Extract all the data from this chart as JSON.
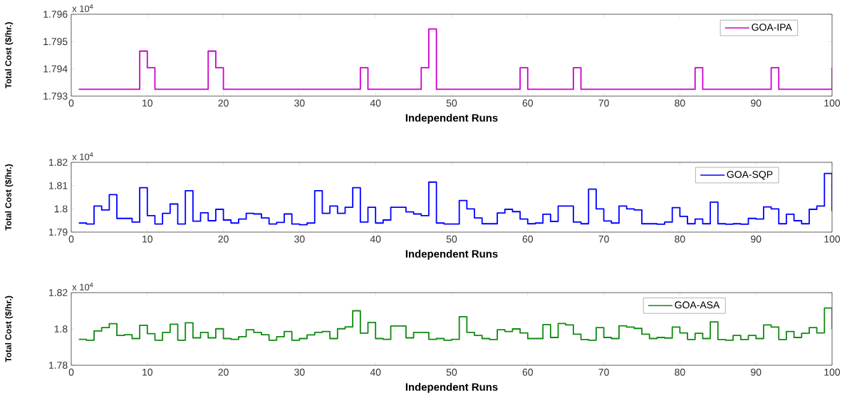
{
  "chart_data": [
    {
      "type": "step",
      "xlabel": "Independent Runs",
      "ylabel": "Total Cost ($/hr.)",
      "annotations": [
        "x 10$^{4}$"
      ],
      "legend": "top right",
      "xlim": [
        0,
        100
      ],
      "ylim": [
        1.793,
        1.796
      ],
      "xticks": [
        0,
        10,
        20,
        30,
        40,
        50,
        60,
        70,
        80,
        90,
        100
      ],
      "yticks": [
        1.793,
        1.794,
        1.795,
        1.796
      ],
      "x": [
        1,
        2,
        3,
        4,
        5,
        6,
        7,
        8,
        9,
        10,
        11,
        12,
        13,
        14,
        15,
        16,
        17,
        18,
        19,
        20,
        21,
        22,
        23,
        24,
        25,
        26,
        27,
        28,
        29,
        30,
        31,
        32,
        33,
        34,
        35,
        36,
        37,
        38,
        39,
        40,
        41,
        42,
        43,
        44,
        45,
        46,
        47,
        48,
        49,
        50,
        51,
        52,
        53,
        54,
        55,
        56,
        57,
        58,
        59,
        60,
        61,
        62,
        63,
        64,
        65,
        66,
        67,
        68,
        69,
        70,
        71,
        72,
        73,
        74,
        75,
        76,
        77,
        78,
        79,
        80,
        81,
        82,
        83,
        84,
        85,
        86,
        87,
        88,
        89,
        90,
        91,
        92,
        93,
        94,
        95,
        96,
        97,
        98,
        99,
        100
      ],
      "series": [
        {
          "name": "GOA-IPA",
          "color": "#cc00cc",
          "values": [
            1.79325,
            1.79325,
            1.79325,
            1.79325,
            1.79325,
            1.79325,
            1.79325,
            1.79325,
            1.79465,
            1.79404,
            1.79325,
            1.79325,
            1.79325,
            1.79325,
            1.79325,
            1.79325,
            1.79325,
            1.79465,
            1.79404,
            1.79325,
            1.79325,
            1.79325,
            1.79325,
            1.79325,
            1.79325,
            1.79325,
            1.79325,
            1.79325,
            1.79325,
            1.79325,
            1.79325,
            1.79325,
            1.79325,
            1.79325,
            1.79325,
            1.79325,
            1.79325,
            1.79404,
            1.79325,
            1.79325,
            1.79325,
            1.79325,
            1.79325,
            1.79325,
            1.79325,
            1.79404,
            1.79546,
            1.79325,
            1.79325,
            1.79325,
            1.79325,
            1.79325,
            1.79325,
            1.79325,
            1.79325,
            1.79325,
            1.79325,
            1.79325,
            1.79404,
            1.79325,
            1.79325,
            1.79325,
            1.79325,
            1.79325,
            1.79325,
            1.79404,
            1.79325,
            1.79325,
            1.79325,
            1.79325,
            1.79325,
            1.79325,
            1.79325,
            1.79325,
            1.79325,
            1.79325,
            1.79325,
            1.79325,
            1.79325,
            1.79325,
            1.79325,
            1.79404,
            1.79325,
            1.79325,
            1.79325,
            1.79325,
            1.79325,
            1.79325,
            1.79325,
            1.79325,
            1.79325,
            1.79404,
            1.79325,
            1.79325,
            1.79325,
            1.79325,
            1.79325,
            1.79325,
            1.79325,
            1.79404
          ]
        }
      ]
    },
    {
      "type": "step",
      "xlabel": "Independent Runs",
      "ylabel": "Total Cost ($/hr.)",
      "annotations": [
        "x 10$^{4}$"
      ],
      "legend": "top right",
      "xlim": [
        0,
        100
      ],
      "ylim": [
        1.79,
        1.82
      ],
      "xticks": [
        0,
        10,
        20,
        30,
        40,
        50,
        60,
        70,
        80,
        90,
        100
      ],
      "yticks": [
        1.79,
        1.8,
        1.81,
        1.82
      ],
      "x": [
        1,
        2,
        3,
        4,
        5,
        6,
        7,
        8,
        9,
        10,
        11,
        12,
        13,
        14,
        15,
        16,
        17,
        18,
        19,
        20,
        21,
        22,
        23,
        24,
        25,
        26,
        27,
        28,
        29,
        30,
        31,
        32,
        33,
        34,
        35,
        36,
        37,
        38,
        39,
        40,
        41,
        42,
        43,
        44,
        45,
        46,
        47,
        48,
        49,
        50,
        51,
        52,
        53,
        54,
        55,
        56,
        57,
        58,
        59,
        60,
        61,
        62,
        63,
        64,
        65,
        66,
        67,
        68,
        69,
        70,
        71,
        72,
        73,
        74,
        75,
        76,
        77,
        78,
        79,
        80,
        81,
        82,
        83,
        84,
        85,
        86,
        87,
        88,
        89,
        90,
        91,
        92,
        93,
        94,
        95,
        96,
        97,
        98,
        99,
        100
      ],
      "series": [
        {
          "name": "GOA-SQP",
          "color": "#0000ff",
          "values": [
            1.7939,
            1.7935,
            1.8012,
            1.7995,
            1.8061,
            1.7959,
            1.7959,
            1.7943,
            1.8091,
            1.7971,
            1.7935,
            1.7981,
            1.8021,
            1.7935,
            1.8078,
            1.7947,
            1.7983,
            1.7949,
            1.7998,
            1.7952,
            1.7939,
            1.7956,
            1.7981,
            1.7978,
            1.7961,
            1.7935,
            1.7942,
            1.7978,
            1.7935,
            1.7932,
            1.7939,
            1.8078,
            1.7981,
            1.8012,
            1.7981,
            1.8007,
            1.8091,
            1.7943,
            1.8007,
            1.7939,
            1.7952,
            1.8007,
            1.8007,
            1.7987,
            1.7978,
            1.7971,
            1.8115,
            1.7939,
            1.7935,
            1.7935,
            1.8036,
            1.8,
            1.7961,
            1.7936,
            1.7936,
            1.7982,
            1.7998,
            1.7988,
            1.7956,
            1.7936,
            1.7939,
            1.7977,
            1.7946,
            1.8012,
            1.8012,
            1.7943,
            1.7936,
            1.8085,
            1.8,
            1.7948,
            1.7939,
            1.8012,
            1.8,
            1.7995,
            1.7936,
            1.7936,
            1.7934,
            1.7943,
            1.8005,
            1.7968,
            1.7936,
            1.7956,
            1.7936,
            1.8029,
            1.7936,
            1.7934,
            1.7936,
            1.7934,
            1.7959,
            1.7956,
            1.8008,
            1.8,
            1.7936,
            1.7977,
            1.7949,
            1.7936,
            1.7998,
            1.8012,
            1.8152,
            1.799
          ]
        }
      ]
    },
    {
      "type": "step",
      "xlabel": "Independent Runs",
      "ylabel": "Total Cost ($/hr.)",
      "annotations": [
        "x 10$^{4}$"
      ],
      "legend": "top right",
      "xlim": [
        0,
        100
      ],
      "ylim": [
        1.78,
        1.82
      ],
      "xticks": [
        0,
        10,
        20,
        30,
        40,
        50,
        60,
        70,
        80,
        90,
        100
      ],
      "yticks": [
        1.78,
        1.8,
        1.82
      ],
      "x": [
        1,
        2,
        3,
        4,
        5,
        6,
        7,
        8,
        9,
        10,
        11,
        12,
        13,
        14,
        15,
        16,
        17,
        18,
        19,
        20,
        21,
        22,
        23,
        24,
        25,
        26,
        27,
        28,
        29,
        30,
        31,
        32,
        33,
        34,
        35,
        36,
        37,
        38,
        39,
        40,
        41,
        42,
        43,
        44,
        45,
        46,
        47,
        48,
        49,
        50,
        51,
        52,
        53,
        54,
        55,
        56,
        57,
        58,
        59,
        60,
        61,
        62,
        63,
        64,
        65,
        66,
        67,
        68,
        69,
        70,
        71,
        72,
        73,
        74,
        75,
        76,
        77,
        78,
        79,
        80,
        81,
        82,
        83,
        84,
        85,
        86,
        87,
        88,
        89,
        90,
        91,
        92,
        93,
        94,
        95,
        96,
        97,
        98,
        99,
        100
      ],
      "series": [
        {
          "name": "GOA-ASA",
          "color": "#108a10",
          "values": [
            1.7943,
            1.7938,
            1.7989,
            1.8007,
            1.8029,
            1.7964,
            1.7968,
            1.7947,
            1.802,
            1.7974,
            1.7938,
            1.7981,
            1.8026,
            1.7938,
            1.8034,
            1.7951,
            1.7981,
            1.7951,
            1.8001,
            1.7947,
            1.7943,
            1.7957,
            1.7996,
            1.7981,
            1.7968,
            1.7938,
            1.7957,
            1.7986,
            1.7938,
            1.7947,
            1.7967,
            1.7981,
            1.7986,
            1.7947,
            1.8001,
            1.8011,
            1.81,
            1.7977,
            1.8036,
            1.7947,
            1.7943,
            1.8016,
            1.8016,
            1.7951,
            1.7981,
            1.7981,
            1.7943,
            1.7947,
            1.7938,
            1.7943,
            1.8067,
            1.7981,
            1.7964,
            1.7947,
            1.7942,
            1.7996,
            1.7986,
            1.8,
            1.7978,
            1.7947,
            1.7947,
            1.8024,
            1.7953,
            1.803,
            1.8022,
            1.7971,
            1.7942,
            1.7938,
            1.8007,
            1.7953,
            1.7947,
            1.8017,
            1.801,
            1.8003,
            1.7971,
            1.7947,
            1.7953,
            1.795,
            1.801,
            1.7978,
            1.7942,
            1.7976,
            1.7947,
            1.8039,
            1.7942,
            1.7938,
            1.7964,
            1.7942,
            1.7964,
            1.7947,
            1.8022,
            1.801,
            1.7942,
            1.7986,
            1.7953,
            1.7976,
            1.8007,
            1.7978,
            1.8115,
            1.8
          ]
        }
      ]
    }
  ]
}
